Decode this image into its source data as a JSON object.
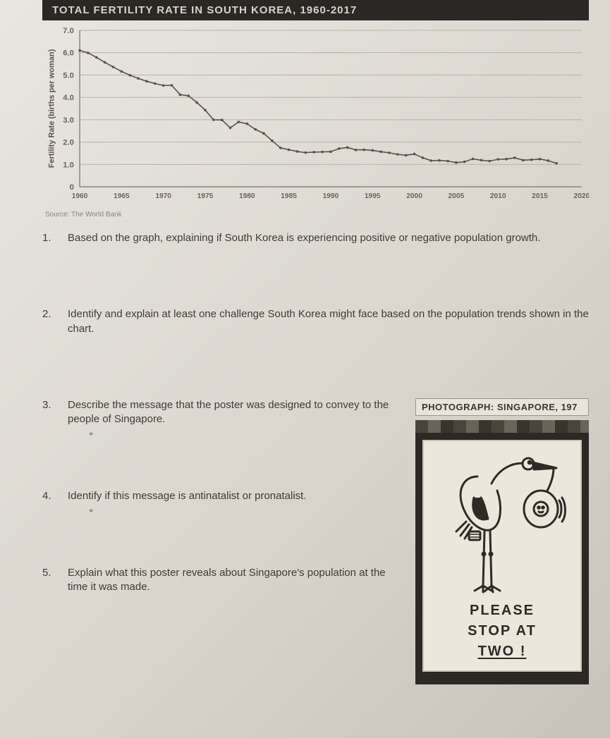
{
  "chart": {
    "title": "TOTAL FERTILITY RATE IN SOUTH KOREA, 1960-2017",
    "type": "line",
    "ylabel": "Fertility Rate (births per woman)",
    "ylim": [
      0,
      7
    ],
    "ytick_step": 1,
    "yticks": [
      "0",
      "1.0",
      "2.0",
      "3.0",
      "4.0",
      "5.0",
      "6.0",
      "7.0"
    ],
    "xlim": [
      1960,
      2020
    ],
    "xtick_step": 5,
    "xticks": [
      "1960",
      "1965",
      "1970",
      "1975",
      "1980",
      "1985",
      "1990",
      "1995",
      "2000",
      "2005",
      "2010",
      "2015",
      "2020"
    ],
    "line_color": "#5a5048",
    "line_width": 1.6,
    "marker_color": "#5a5048",
    "marker_radius": 1.8,
    "grid_color": "#b8b2a6",
    "background_color": "transparent",
    "axis_color": "#8a847a",
    "label_fontsize": 11,
    "tick_fontsize": 10,
    "series": {
      "years": [
        1960,
        1961,
        1962,
        1963,
        1964,
        1965,
        1966,
        1967,
        1968,
        1969,
        1970,
        1971,
        1972,
        1973,
        1974,
        1975,
        1976,
        1977,
        1978,
        1979,
        1980,
        1981,
        1982,
        1983,
        1984,
        1985,
        1986,
        1987,
        1988,
        1989,
        1990,
        1991,
        1992,
        1993,
        1994,
        1995,
        1996,
        1997,
        1998,
        1999,
        2000,
        2001,
        2002,
        2003,
        2004,
        2005,
        2006,
        2007,
        2008,
        2009,
        2010,
        2011,
        2012,
        2013,
        2014,
        2015,
        2016,
        2017
      ],
      "values": [
        6.1,
        5.99,
        5.79,
        5.57,
        5.36,
        5.16,
        4.99,
        4.85,
        4.72,
        4.62,
        4.53,
        4.54,
        4.12,
        4.07,
        3.77,
        3.43,
        3.0,
        2.99,
        2.64,
        2.9,
        2.82,
        2.57,
        2.39,
        2.06,
        1.74,
        1.66,
        1.58,
        1.53,
        1.55,
        1.56,
        1.57,
        1.71,
        1.76,
        1.65,
        1.66,
        1.63,
        1.57,
        1.52,
        1.45,
        1.41,
        1.47,
        1.3,
        1.17,
        1.18,
        1.15,
        1.08,
        1.12,
        1.25,
        1.19,
        1.15,
        1.23,
        1.24,
        1.3,
        1.19,
        1.21,
        1.24,
        1.17,
        1.05
      ]
    },
    "source": "Source: The World Bank"
  },
  "questions": {
    "q1": {
      "num": "1.",
      "text": "Based on the graph, explaining if South Korea is experiencing positive or negative population growth."
    },
    "q2": {
      "num": "2.",
      "text": "Identify and explain at least one challenge South Korea might face based on the population trends shown in the chart."
    },
    "q3": {
      "num": "3.",
      "text": "Describe the message that the poster was designed to convey to the people of Singapore."
    },
    "q4": {
      "num": "4.",
      "text": "Identify if this message is antinatalist or pronatalist."
    },
    "q5": {
      "num": "5.",
      "text": "Explain what this poster reveals about Singapore's population at the time it was made."
    }
  },
  "photo": {
    "label": "PHOTOGRAPH: SINGAPORE, 197",
    "poster_line1": "PLEASE",
    "poster_line2": "STOP AT",
    "poster_line3": "TWO !",
    "stork_stroke": "#2e2a24",
    "poster_bg": "#ece7db",
    "frame_bg": "#2c2824"
  }
}
